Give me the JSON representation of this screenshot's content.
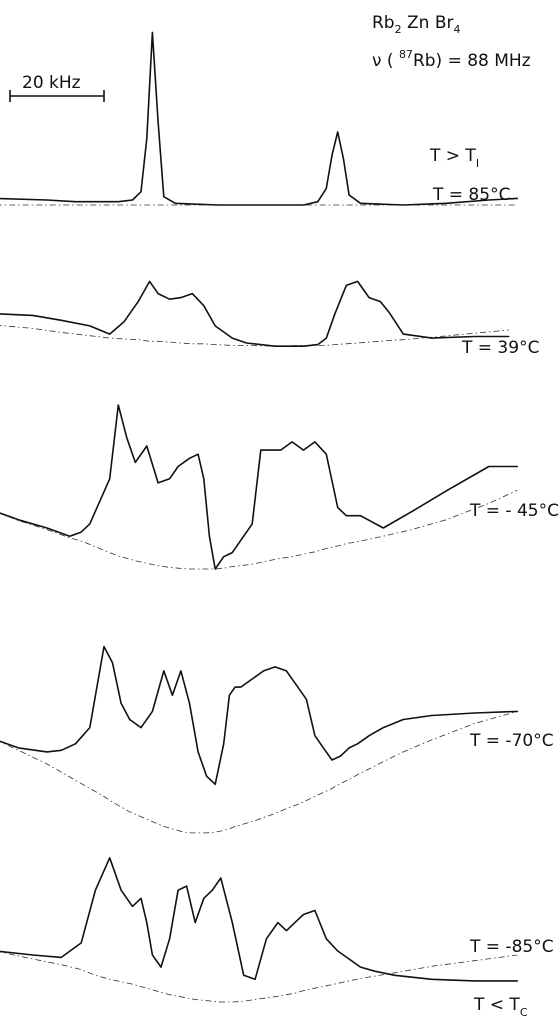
{
  "header": {
    "compound_main": "Rb",
    "compound_sub1": "2",
    "compound_mid": " Zn Br",
    "compound_sub2": "4",
    "freq_prefix": "ν ( ",
    "freq_sup": "87",
    "freq_suffix": "Rb) = 88 MHz"
  },
  "scale_bar": {
    "label": "20 kHz"
  },
  "chart_data": {
    "type": "line",
    "title": "",
    "xlabel": "",
    "ylabel": "",
    "grid": false,
    "series": [
      {
        "name": "T = 85°C",
        "phase_main": "T  >  T",
        "phase_sub": "I",
        "label": "T = 85°C",
        "x": [
          -98,
          -80,
          -70,
          -60,
          -55,
          -50,
          -47,
          -45,
          -43,
          -41,
          -39,
          -35,
          -20,
          -10,
          0,
          10,
          15,
          18,
          20,
          22,
          24,
          26,
          30,
          45,
          60,
          75,
          85
        ],
        "y": [
          4,
          3,
          2,
          2,
          2,
          3,
          8,
          40,
          104,
          50,
          5,
          1,
          0,
          0,
          0,
          0,
          2,
          10,
          30,
          44,
          28,
          6,
          1,
          0,
          1,
          3,
          4
        ],
        "baseline": [
          0,
          0,
          0,
          0,
          0,
          0,
          0,
          0,
          0,
          0,
          0,
          0,
          0,
          0,
          0,
          0,
          0,
          0,
          0,
          0,
          0,
          0,
          0,
          0,
          0,
          0,
          0
        ]
      },
      {
        "name": "T = 39°C",
        "label": "T = 39°C",
        "x": [
          -98,
          -85,
          -75,
          -65,
          -58,
          -53,
          -48,
          -44,
          -41,
          -37,
          -33,
          -29,
          -25,
          -21,
          -15,
          -10,
          0,
          10,
          15,
          18,
          21,
          25,
          29,
          33,
          37,
          40,
          45,
          55,
          70,
          82
        ],
        "y": [
          20,
          18,
          12,
          5,
          -5,
          10,
          35,
          60,
          45,
          38,
          40,
          45,
          30,
          5,
          -10,
          -16,
          -20,
          -20,
          -18,
          -10,
          20,
          55,
          60,
          40,
          35,
          22,
          -5,
          -10,
          -8,
          -8
        ],
        "baseline": [
          6,
          2,
          -3,
          -7,
          -10,
          -11,
          -12,
          -14,
          -14,
          -15,
          -16,
          -17,
          -17,
          -18,
          -19,
          -19,
          -20,
          -19,
          -19,
          -19,
          -18,
          -17,
          -16,
          -15,
          -14,
          -13,
          -12,
          -9,
          -4,
          0
        ]
      },
      {
        "name": "T = -45°C",
        "label": "T = - 45°C",
        "x": [
          -98,
          -90,
          -80,
          -72,
          -68,
          -65,
          -58,
          -55,
          -52,
          -49,
          -45,
          -41,
          -37,
          -34,
          -30,
          -27,
          -25,
          -23,
          -21,
          -18,
          -15,
          -12,
          -8,
          -5,
          -1,
          2,
          6,
          10,
          14,
          18,
          22,
          25,
          30,
          38,
          48,
          60,
          75,
          85
        ],
        "y": [
          20,
          10,
          0,
          -10,
          -5,
          5,
          60,
          150,
          110,
          80,
          100,
          55,
          60,
          75,
          85,
          90,
          60,
          -10,
          -50,
          -35,
          -30,
          -15,
          5,
          95,
          95,
          95,
          105,
          95,
          105,
          90,
          25,
          15,
          15,
          0,
          20,
          45,
          75,
          75
        ],
        "baseline": [
          20,
          9,
          -2,
          -12,
          -16,
          -20,
          -30,
          -34,
          -37,
          -40,
          -43,
          -46,
          -48,
          -49,
          -50,
          -50,
          -50,
          -50,
          -50,
          -49,
          -47,
          -46,
          -44,
          -42,
          -39,
          -37,
          -35,
          -32,
          -29,
          -25,
          -22,
          -19,
          -16,
          -10,
          -2,
          10,
          30,
          46
        ]
      },
      {
        "name": "T = -70°C",
        "label": "T = -70°C",
        "x": [
          -98,
          -90,
          -80,
          -75,
          -70,
          -65,
          -60,
          -57,
          -54,
          -51,
          -47,
          -43,
          -39,
          -36,
          -33,
          -30,
          -27,
          -24,
          -21,
          -18,
          -16,
          -14,
          -12,
          -8,
          -4,
          0,
          4,
          8,
          11,
          14,
          17,
          20,
          23,
          26,
          29,
          33,
          38,
          45,
          55,
          70,
          85
        ],
        "y": [
          25,
          15,
          10,
          12,
          20,
          40,
          140,
          120,
          70,
          50,
          40,
          60,
          110,
          80,
          110,
          70,
          10,
          -20,
          -30,
          20,
          80,
          90,
          90,
          100,
          110,
          115,
          110,
          90,
          75,
          30,
          15,
          0,
          5,
          15,
          20,
          30,
          40,
          50,
          55,
          58,
          60
        ],
        "baseline": [
          25,
          12,
          -5,
          -15,
          -25,
          -35,
          -45,
          -52,
          -58,
          -64,
          -70,
          -76,
          -82,
          -85,
          -88,
          -90,
          -90,
          -90,
          -89,
          -87,
          -85,
          -82,
          -80,
          -76,
          -71,
          -66,
          -60,
          -55,
          -50,
          -45,
          -40,
          -35,
          -29,
          -24,
          -18,
          -11,
          -2,
          10,
          25,
          45,
          60
        ]
      },
      {
        "name": "T = -85°C",
        "label": "T = -85°C",
        "x": [
          -98,
          -85,
          -75,
          -68,
          -63,
          -58,
          -54,
          -50,
          -47,
          -45,
          -43,
          -40,
          -37,
          -34,
          -31,
          -28,
          -25,
          -22,
          -19,
          -15,
          -11,
          -7,
          -3,
          1,
          4,
          7,
          10,
          14,
          18,
          22,
          26,
          30,
          35,
          42,
          55,
          70,
          85
        ],
        "y": [
          5,
          0,
          -3,
          15,
          80,
          120,
          80,
          60,
          70,
          40,
          0,
          -15,
          20,
          80,
          85,
          40,
          70,
          80,
          95,
          40,
          -25,
          -30,
          20,
          40,
          30,
          40,
          50,
          55,
          20,
          5,
          -5,
          -15,
          -20,
          -25,
          -30,
          -32,
          -32
        ],
        "baseline": [
          5,
          -5,
          -12,
          -18,
          -25,
          -30,
          -33,
          -36,
          -39,
          -41,
          -43,
          -46,
          -49,
          -51,
          -53,
          -55,
          -56,
          -57,
          -58,
          -58,
          -57,
          -55,
          -53,
          -51,
          -49,
          -47,
          -44,
          -41,
          -38,
          -35,
          -32,
          -29,
          -26,
          -22,
          -14,
          -7,
          0
        ],
        "phase_main": "T  <  T",
        "phase_sub": "C"
      }
    ]
  }
}
